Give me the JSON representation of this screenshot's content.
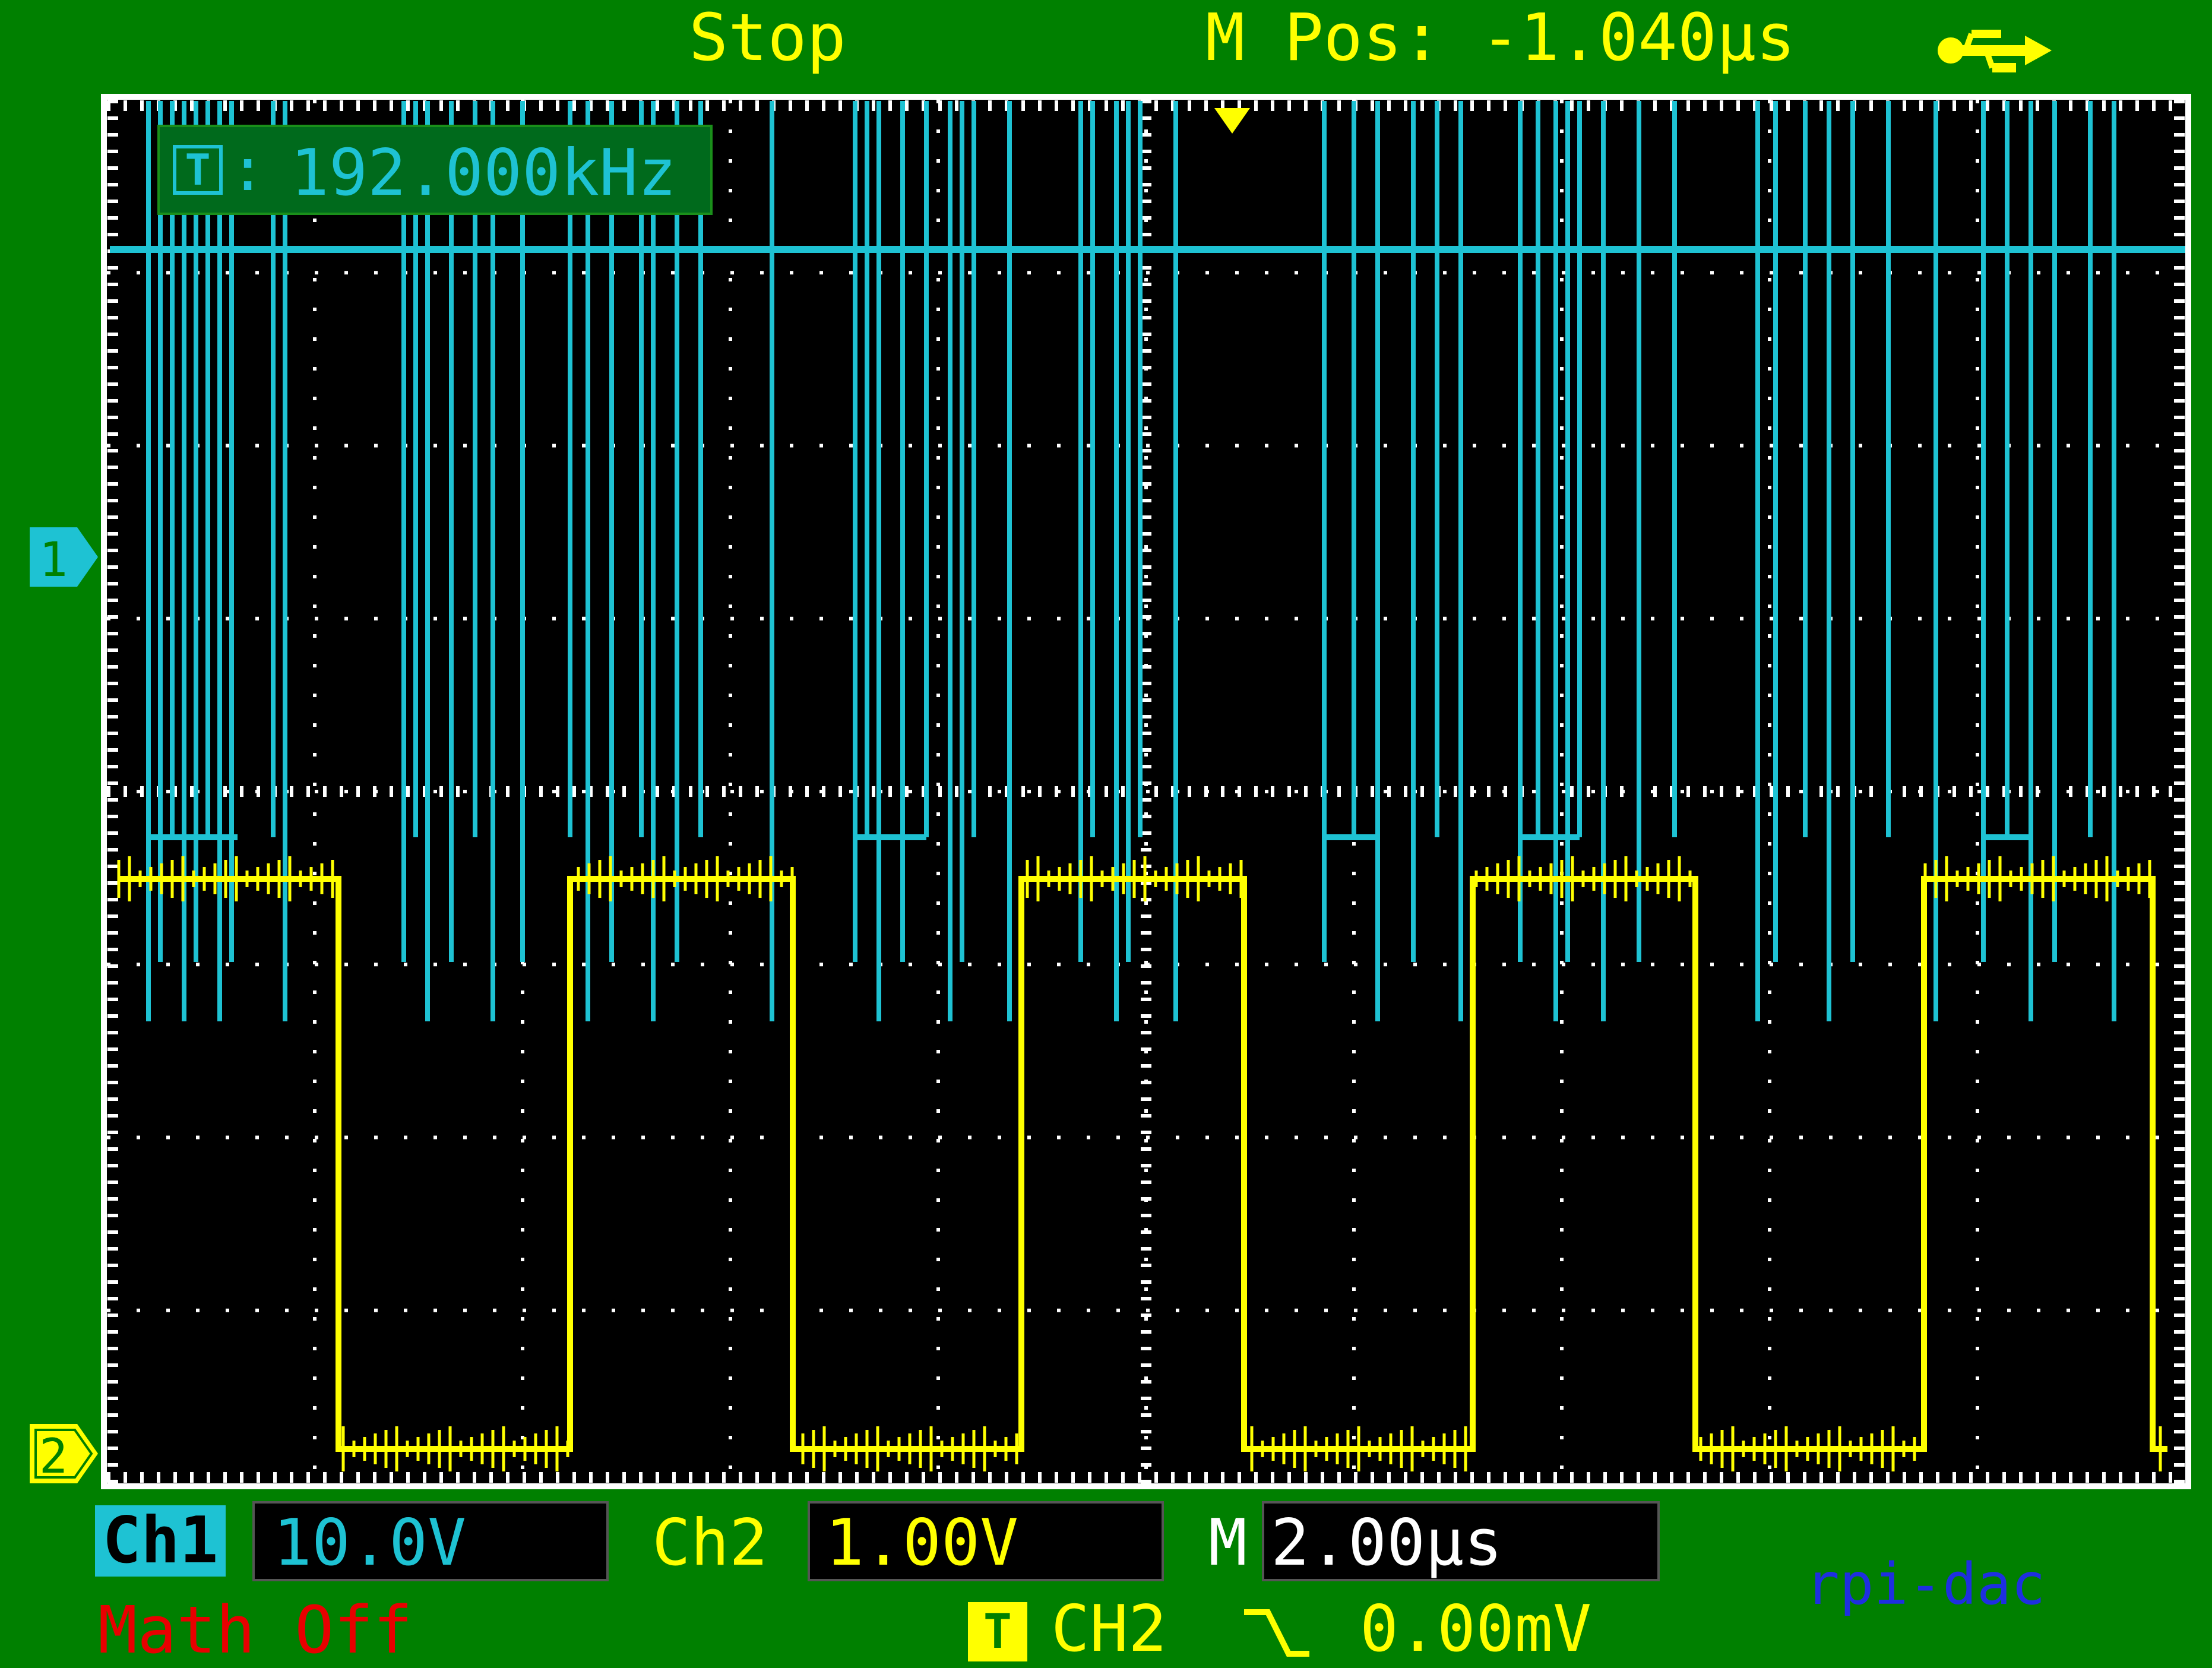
{
  "header": {
    "run_state": "Stop",
    "m_pos": "M Pos: -1.040µs",
    "usb_icon": "usb-icon"
  },
  "frequency_readout": {
    "icon_label": "T",
    "separator": ":",
    "value": "192.000kHz"
  },
  "markers": {
    "ch1": "1",
    "ch2": "2"
  },
  "status": {
    "ch1_label": "Ch1",
    "ch1_scale": "10.0V",
    "ch2_label": "Ch2",
    "ch2_scale": "1.00V",
    "m_label": "M",
    "m_scale": "2.00µs",
    "math": "Math Off",
    "trigger_icon_label": "T",
    "trigger_source": "CH2",
    "trigger_edge_icon": "falling-edge-icon",
    "trigger_level": "0.00mV"
  },
  "watermark": "rpi-dac",
  "colors": {
    "background": "#008000",
    "ch1": "#1ec2d3",
    "ch2": "#ffff00",
    "math": "#e80000",
    "grid": "#ffffff"
  }
}
